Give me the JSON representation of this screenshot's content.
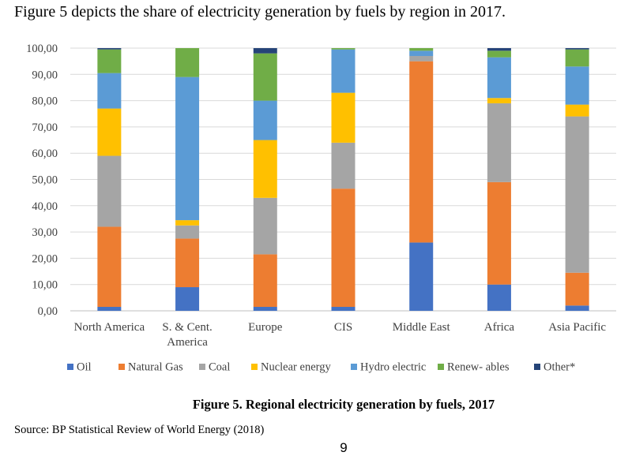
{
  "intro_text": "Figure 5 depicts the share of electricity generation by fuels by region in 2017.",
  "caption": "Figure 5. Regional electricity generation by fuels, 2017",
  "source": "Source: BP Statistical Review of World Energy (2018)",
  "page_number": "9",
  "colors": {
    "Oil": "#4472c4",
    "Natural Gas": "#ed7d31",
    "Coal": "#a5a5a5",
    "Nuclear energy": "#ffc000",
    "Hydro electric": "#5b9bd5",
    "Renew- ables": "#70ad47",
    "Other*": "#264478"
  },
  "chart_data": {
    "type": "bar",
    "stacked": true,
    "title": "",
    "xlabel": "",
    "ylabel": "",
    "ylim": [
      0,
      100
    ],
    "yticks": [
      "0,00",
      "10,00",
      "20,00",
      "30,00",
      "40,00",
      "50,00",
      "60,00",
      "70,00",
      "80,00",
      "90,00",
      "100,00"
    ],
    "grid": true,
    "legend_position": "bottom",
    "categories": [
      [
        "North America"
      ],
      [
        "S. & Cent.",
        "America"
      ],
      [
        "Europe"
      ],
      [
        "CIS"
      ],
      [
        "Middle East"
      ],
      [
        "Africa"
      ],
      [
        "Asia Pacific"
      ]
    ],
    "series": [
      {
        "name": "Oil",
        "values": [
          1.5,
          9,
          1.5,
          1.5,
          26,
          10,
          2
        ]
      },
      {
        "name": "Natural Gas",
        "values": [
          30.5,
          18.5,
          20,
          45,
          69,
          39,
          12.5
        ]
      },
      {
        "name": "Coal",
        "values": [
          27,
          5,
          21.5,
          17.5,
          2,
          30,
          59.5
        ]
      },
      {
        "name": "Nuclear energy",
        "values": [
          18,
          2,
          22,
          19,
          0,
          2,
          4.5
        ]
      },
      {
        "name": "Hydro electric",
        "values": [
          13.5,
          54.5,
          15,
          16.5,
          2,
          15.5,
          14.5
        ]
      },
      {
        "name": "Renew- ables",
        "values": [
          9,
          11,
          18,
          0.5,
          1,
          2.5,
          6.5
        ]
      },
      {
        "name": "Other*",
        "values": [
          0.5,
          0,
          2,
          0,
          0,
          1,
          0.5
        ]
      }
    ]
  }
}
